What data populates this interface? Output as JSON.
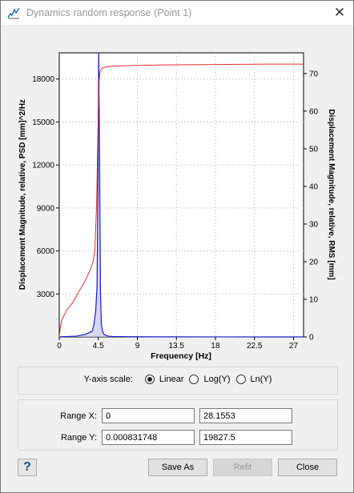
{
  "window": {
    "title": "Dynamics random response  (Point 1)",
    "close_glyph": "✕"
  },
  "chart_data": {
    "type": "line",
    "xlabel": "Frequency [Hz]",
    "ylabel_left": "Displacement Magnitude, relative, PSD [mm]^2/Hz",
    "ylabel_right": "Displacement Magnitude, relative, RMS [mm]",
    "xlim": [
      0,
      28.1553
    ],
    "ylim_left": [
      0,
      19827.5
    ],
    "ylim_right": [
      0,
      75.5
    ],
    "x_ticks": [
      "0",
      "4.5",
      "9",
      "13.5",
      "18",
      "22.5",
      "27"
    ],
    "y_ticks_left": [
      "3000",
      "6000",
      "9000",
      "12000",
      "15000",
      "18000"
    ],
    "y_ticks_right": [
      "0",
      "10",
      "20",
      "30",
      "40",
      "50",
      "60",
      "70"
    ],
    "grid": true,
    "series": [
      {
        "axis": "left",
        "color": "#1a1ac8",
        "x": [
          0,
          1,
          2,
          3,
          3.8,
          4.0,
          4.2,
          4.35,
          4.45,
          4.55,
          4.65,
          4.75,
          4.85,
          5.0,
          5.2,
          5.6,
          6.2,
          8,
          11,
          14,
          17,
          20,
          24,
          28.1553
        ],
        "y": [
          5,
          30,
          60,
          180,
          400,
          900,
          1800,
          3500,
          10000,
          19827,
          12000,
          3000,
          900,
          350,
          150,
          60,
          30,
          15,
          8,
          5,
          3,
          2,
          1,
          0.5
        ]
      },
      {
        "axis": "right",
        "color": "#e03030",
        "x": [
          0,
          0.15,
          0.3,
          0.6,
          1.0,
          1.5,
          2.0,
          2.5,
          3.0,
          3.3,
          3.6,
          3.9,
          4.1,
          4.3,
          4.4,
          4.5,
          4.6,
          4.7,
          4.85,
          5.0,
          5.5,
          6.5,
          8,
          10,
          13,
          18,
          24,
          28.1553
        ],
        "y": [
          0,
          3,
          4.5,
          6,
          7.5,
          9,
          11,
          13,
          15,
          16.5,
          18,
          20,
          23,
          35,
          48,
          60,
          68,
          70.5,
          71.2,
          71.5,
          71.8,
          72,
          72.1,
          72.2,
          72.3,
          72.4,
          72.5,
          72.5
        ]
      }
    ]
  },
  "yaxis_scale": {
    "label": "Y-axis scale:",
    "options": [
      {
        "label": "Linear",
        "selected": true
      },
      {
        "label": "Log(Y)",
        "selected": false
      },
      {
        "label": "Ln(Y)",
        "selected": false
      }
    ]
  },
  "ranges": {
    "x_label": "Range X:",
    "x_min": "0",
    "x_max": "28.1553",
    "y_label": "Range Y:",
    "y_min": "0.000831748",
    "y_max": "19827.5"
  },
  "buttons": {
    "help": "?",
    "save_as": "Save As",
    "refit": "Refit",
    "close": "Close"
  }
}
